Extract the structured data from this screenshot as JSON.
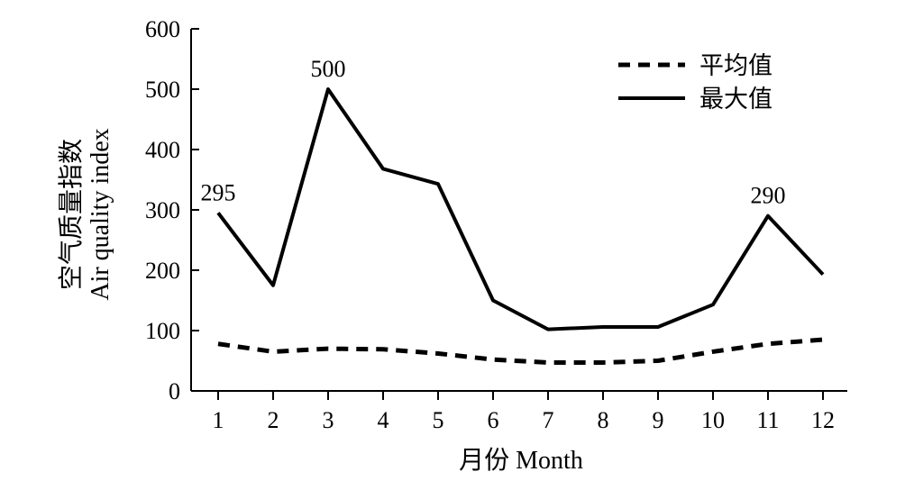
{
  "chart_data": {
    "type": "line",
    "x": [
      1,
      2,
      3,
      4,
      5,
      6,
      7,
      8,
      9,
      10,
      11,
      12
    ],
    "xlabel": "月份 Month",
    "ylabel_cn": "空气质量指数",
    "ylabel_en": "Air quality index",
    "ylim": [
      0,
      600
    ],
    "yticks": [
      0,
      100,
      200,
      300,
      400,
      500,
      600
    ],
    "grid": false,
    "legend_position": "top-right",
    "series": [
      {
        "name": "平均值",
        "style": "dashed",
        "color": "#000000",
        "values": [
          78,
          65,
          70,
          69,
          62,
          52,
          47,
          47,
          50,
          65,
          78,
          85
        ]
      },
      {
        "name": "最大值",
        "style": "solid",
        "color": "#000000",
        "values": [
          295,
          175,
          500,
          368,
          343,
          150,
          102,
          106,
          106,
          143,
          290,
          193
        ]
      }
    ],
    "annotations": [
      {
        "text": "295",
        "x": 1,
        "y": 295
      },
      {
        "text": "500",
        "x": 3,
        "y": 500
      },
      {
        "text": "290",
        "x": 11,
        "y": 290
      }
    ]
  }
}
